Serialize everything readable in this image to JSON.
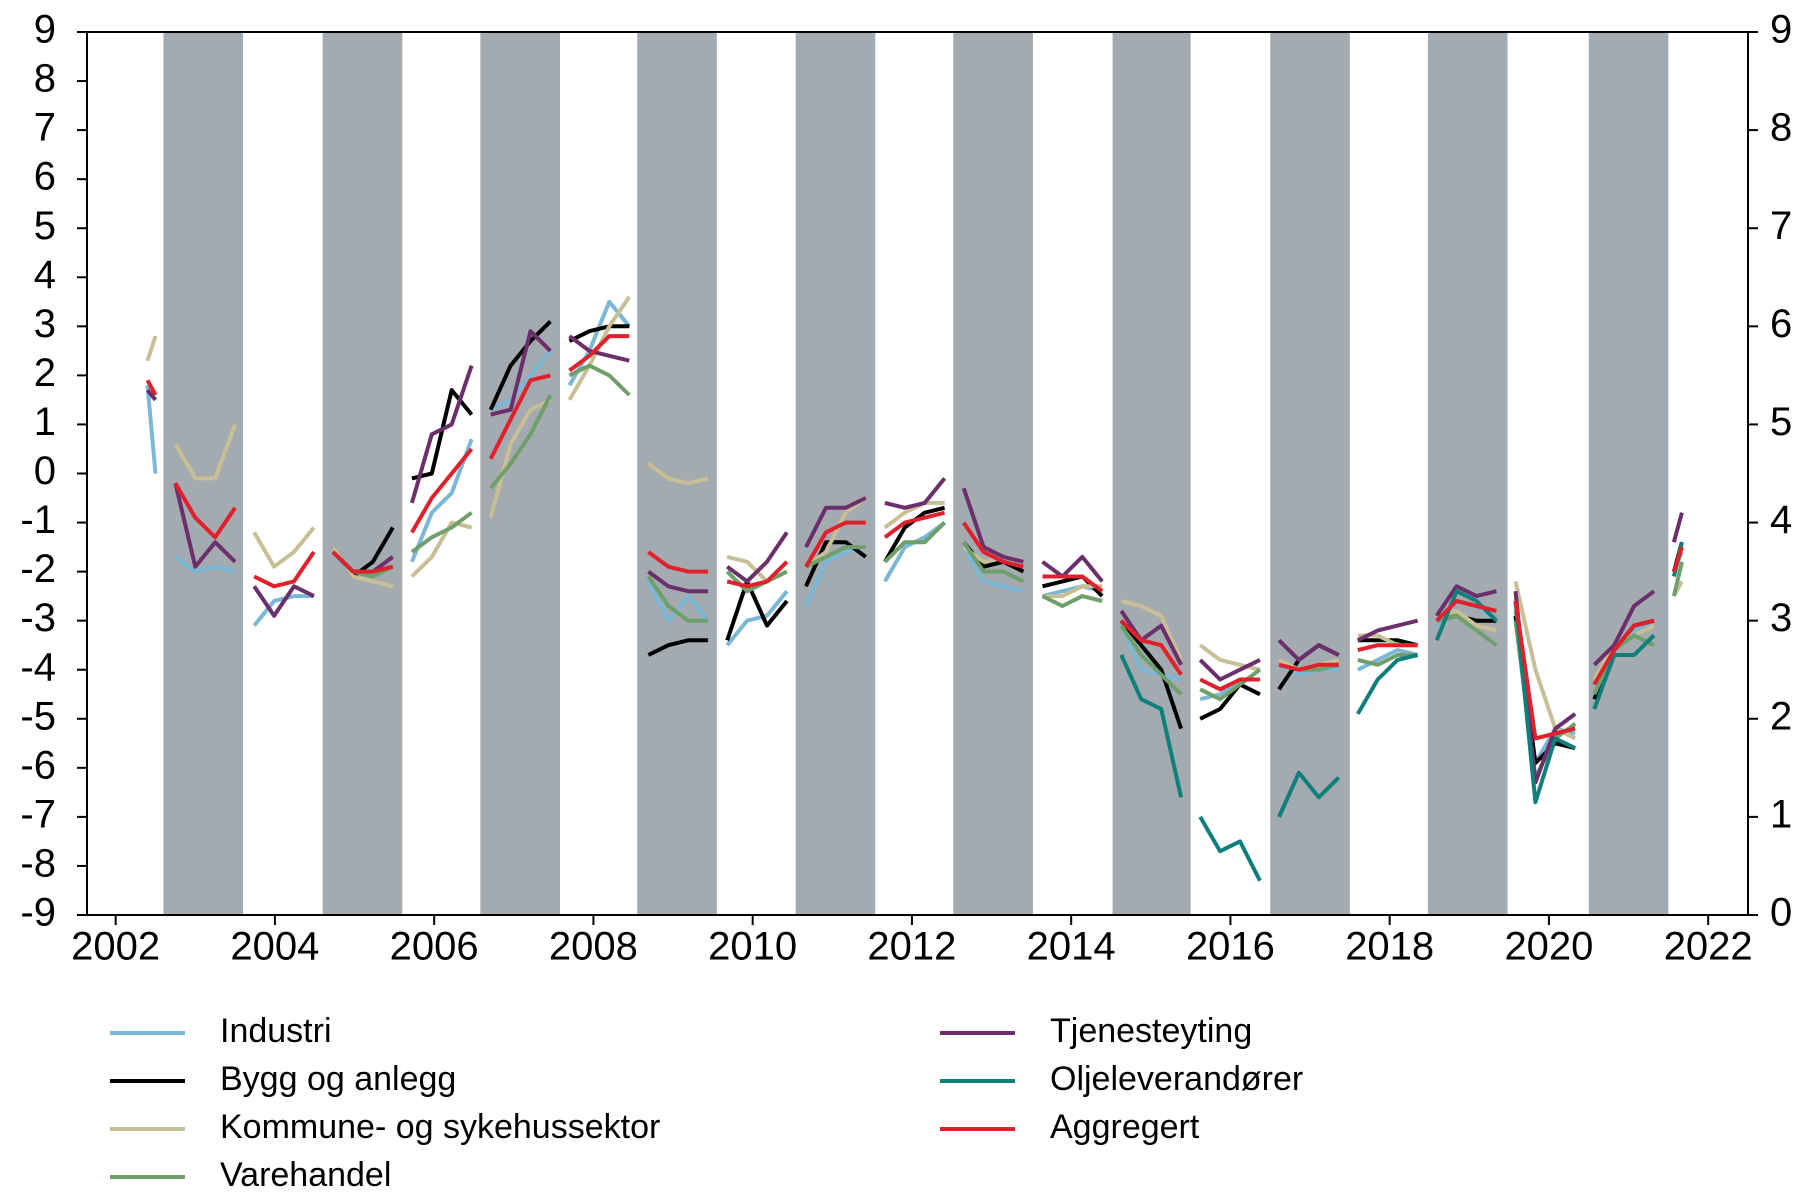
{
  "chart_data": {
    "type": "line",
    "x": [
      2002.4,
      2002.5,
      2002.62,
      2002.75,
      2003,
      2003.25,
      2003.5,
      2003.62,
      2003.74,
      2003.99,
      2004.24,
      2004.49,
      2004.61,
      2004.73,
      2004.98,
      2005.23,
      2005.48,
      2005.6,
      2005.72,
      2005.97,
      2006.22,
      2006.47,
      2006.59,
      2006.71,
      2006.96,
      2007.21,
      2007.46,
      2007.58,
      2007.7,
      2007.95,
      2008.2,
      2008.45,
      2008.57,
      2008.69,
      2008.94,
      2009.19,
      2009.44,
      2009.56,
      2009.68,
      2009.93,
      2010.18,
      2010.43,
      2010.55,
      2010.67,
      2010.92,
      2011.17,
      2011.42,
      2011.54,
      2011.66,
      2011.91,
      2012.16,
      2012.41,
      2012.53,
      2012.65,
      2012.9,
      2013.15,
      2013.4,
      2013.52,
      2013.64,
      2013.89,
      2014.14,
      2014.39,
      2014.51,
      2014.63,
      2014.88,
      2015.13,
      2015.38,
      2015.5,
      2015.62,
      2015.87,
      2016.12,
      2016.37,
      2016.49,
      2016.61,
      2016.86,
      2017.11,
      2017.36,
      2017.48,
      2017.6,
      2017.85,
      2018.1,
      2018.35,
      2018.47,
      2018.59,
      2018.84,
      2019.09,
      2019.34,
      2019.46,
      2019.58,
      2019.83,
      2020.08,
      2020.33,
      2020.45,
      2020.57,
      2020.82,
      2021.07,
      2021.32,
      2021.45,
      2021.57,
      2021.67
    ],
    "series": [
      {
        "name": "Industri",
        "color": "#7ab8d6",
        "values": [
          1.8,
          0,
          null,
          -1.7,
          -2.0,
          -1.9,
          -2.0,
          null,
          -3.1,
          -2.6,
          -2.5,
          -2.5,
          null,
          -1.6,
          -2.1,
          -2.0,
          -1.9,
          null,
          -1.8,
          -0.8,
          -0.4,
          0.7,
          null,
          1.3,
          1.5,
          2.0,
          2.5,
          null,
          1.8,
          2.5,
          3.5,
          3.0,
          null,
          -2.2,
          -3.0,
          -2.5,
          -3.0,
          null,
          -3.5,
          -3.0,
          -2.9,
          -2.4,
          null,
          -2.7,
          -1.8,
          -1.6,
          -1.5,
          null,
          -2.2,
          -1.5,
          -1.3,
          -1.0,
          null,
          -1.5,
          -2.2,
          -2.3,
          -2.4,
          null,
          -2.5,
          -2.4,
          -2.3,
          -2.4,
          null,
          -3.1,
          -4.0,
          -4.1,
          -4.2,
          null,
          -4.6,
          -4.5,
          -4.2,
          -4.2,
          null,
          -3.9,
          -4.1,
          -4.0,
          -4.0,
          null,
          -4.0,
          -3.8,
          -3.6,
          -3.7,
          null,
          -3.1,
          -2.6,
          -2.7,
          -3.0,
          null,
          -2.8,
          -5.9,
          -5.2,
          -5.3,
          null,
          -4.6,
          -3.6,
          -3.2,
          -3.0,
          null,
          -2.0,
          -1.6
        ]
      },
      {
        "name": "Bygg og anlegg",
        "color": "#000000",
        "values": [
          null,
          null,
          null,
          null,
          null,
          null,
          null,
          null,
          null,
          null,
          null,
          null,
          null,
          -1.5,
          -2.1,
          -1.8,
          -1.1,
          null,
          -0.1,
          0,
          1.7,
          1.2,
          null,
          1.3,
          2.2,
          2.7,
          3.1,
          null,
          2.7,
          2.9,
          3.0,
          3.0,
          null,
          -3.7,
          -3.5,
          -3.4,
          -3.4,
          null,
          -3.4,
          -2.2,
          -3.1,
          -2.6,
          null,
          -2.3,
          -1.4,
          -1.4,
          -1.7,
          null,
          -1.8,
          -1.1,
          -0.8,
          -0.7,
          null,
          -1.4,
          -1.9,
          -1.8,
          -2.0,
          null,
          -2.3,
          -2.2,
          -2.1,
          -2.5,
          null,
          -3.0,
          -3.5,
          -4.0,
          -5.2,
          null,
          -5.0,
          -4.8,
          -4.3,
          -4.5,
          null,
          -4.4,
          -3.8,
          -3.5,
          -3.7,
          null,
          -3.4,
          -3.4,
          -3.4,
          -3.5,
          null,
          -3.0,
          -2.9,
          -3.0,
          -3.0,
          null,
          -2.9,
          -5.9,
          -5.5,
          -5.6,
          null,
          -4.6,
          -3.6,
          -3.1,
          -3.0,
          null,
          -2.0,
          -1.4
        ]
      },
      {
        "name": "Kommune- og sykehussektor",
        "color": "#c8bf96",
        "values": [
          2.3,
          2.8,
          null,
          0.6,
          -0.1,
          -0.1,
          1.0,
          null,
          -1.2,
          -1.9,
          -1.6,
          -1.1,
          null,
          -1.5,
          -2.1,
          -2.2,
          -2.3,
          null,
          -2.1,
          -1.7,
          -1.0,
          -1.1,
          null,
          -0.9,
          0.6,
          1.3,
          1.5,
          null,
          1.5,
          2.2,
          3.0,
          3.6,
          null,
          0.2,
          -0.1,
          -0.2,
          -0.1,
          null,
          -1.7,
          -1.8,
          -2.2,
          -2.0,
          null,
          -1.9,
          -1.6,
          -0.8,
          -0.5,
          null,
          -1.1,
          -0.8,
          -0.6,
          -0.6,
          null,
          -1.5,
          -1.8,
          -1.7,
          -1.8,
          null,
          -2.5,
          -2.5,
          -2.3,
          -2.3,
          null,
          -2.6,
          -2.7,
          -2.9,
          -3.8,
          null,
          -3.5,
          -3.8,
          -3.9,
          -4.0,
          null,
          -3.8,
          -4.0,
          -3.9,
          -3.8,
          null,
          -3.3,
          -3.3,
          -3.5,
          -3.5,
          null,
          -2.9,
          -2.8,
          -3.1,
          -3.2,
          null,
          -2.2,
          -4.0,
          -5.2,
          -5.4,
          null,
          -4.2,
          -3.5,
          -3.3,
          -3.1,
          null,
          -2.5,
          -2.2
        ]
      },
      {
        "name": "Varehandel",
        "color": "#6fa06b",
        "values": [
          null,
          null,
          null,
          null,
          null,
          null,
          null,
          null,
          null,
          null,
          null,
          null,
          null,
          -1.6,
          -2.0,
          -2.1,
          -1.9,
          null,
          -1.6,
          -1.3,
          -1.1,
          -0.8,
          null,
          -0.3,
          0.2,
          0.8,
          1.6,
          null,
          2.0,
          2.2,
          2.0,
          1.6,
          null,
          -2.1,
          -2.7,
          -3.0,
          -3.0,
          null,
          -2.0,
          -2.4,
          -2.2,
          -2.0,
          null,
          -1.9,
          -1.7,
          -1.5,
          -1.5,
          null,
          -1.8,
          -1.4,
          -1.4,
          -1.0,
          null,
          -1.4,
          -2.0,
          -2.0,
          -2.2,
          null,
          -2.5,
          -2.7,
          -2.5,
          -2.6,
          null,
          -3.1,
          -3.7,
          -4.1,
          -4.5,
          null,
          -4.4,
          -4.6,
          -4.3,
          -4.0,
          null,
          -3.9,
          -4.0,
          -4.0,
          -3.9,
          null,
          -3.8,
          -3.9,
          -3.7,
          -3.7,
          null,
          -3.0,
          -2.9,
          -3.2,
          -3.5,
          null,
          -3.0,
          -6.2,
          -5.4,
          -5.1,
          null,
          -4.5,
          -3.6,
          -3.3,
          -3.5,
          null,
          -2.5,
          -1.8
        ]
      },
      {
        "name": "Tjenesteyting",
        "color": "#6b2f6b",
        "values": [
          1.7,
          1.5,
          null,
          -0.2,
          -1.9,
          -1.4,
          -1.8,
          null,
          -2.3,
          -2.9,
          -2.3,
          -2.5,
          null,
          -1.6,
          -2.0,
          -2.0,
          -1.7,
          null,
          -0.6,
          0.8,
          1.0,
          2.2,
          null,
          1.2,
          1.3,
          2.9,
          2.5,
          null,
          2.8,
          2.5,
          2.4,
          2.3,
          null,
          -2.0,
          -2.3,
          -2.4,
          -2.4,
          null,
          -1.9,
          -2.2,
          -1.8,
          -1.2,
          null,
          -1.5,
          -0.7,
          -0.7,
          -0.5,
          null,
          -0.6,
          -0.7,
          -0.6,
          -0.1,
          null,
          -0.3,
          -1.5,
          -1.7,
          -1.8,
          null,
          -1.8,
          -2.1,
          -1.7,
          -2.2,
          null,
          -2.8,
          -3.4,
          -3.1,
          -3.9,
          null,
          -3.8,
          -4.2,
          -4.0,
          -3.8,
          null,
          -3.4,
          -3.8,
          -3.5,
          -3.7,
          null,
          -3.4,
          -3.2,
          -3.1,
          -3.0,
          null,
          -2.9,
          -2.3,
          -2.5,
          -2.4,
          null,
          -2.4,
          -6.3,
          -5.2,
          -4.9,
          null,
          -3.9,
          -3.5,
          -2.7,
          -2.4,
          null,
          -1.4,
          -0.8
        ]
      },
      {
        "name": "Oljeleverandører",
        "color": "#0e7f7a",
        "values": [
          null,
          null,
          null,
          null,
          null,
          null,
          null,
          null,
          null,
          null,
          null,
          null,
          null,
          null,
          null,
          null,
          null,
          null,
          null,
          null,
          null,
          null,
          null,
          null,
          null,
          null,
          null,
          null,
          null,
          null,
          null,
          null,
          null,
          null,
          null,
          null,
          null,
          null,
          null,
          null,
          null,
          null,
          null,
          null,
          null,
          null,
          null,
          null,
          null,
          null,
          null,
          null,
          null,
          null,
          null,
          null,
          null,
          null,
          null,
          null,
          null,
          null,
          null,
          -3.7,
          -4.6,
          -4.8,
          -6.6,
          null,
          -7.0,
          -7.7,
          -7.5,
          -8.3,
          null,
          -7.0,
          -6.1,
          -6.6,
          -6.2,
          null,
          -4.9,
          -4.2,
          -3.8,
          -3.7,
          null,
          -3.4,
          -2.4,
          -2.6,
          -3.0,
          null,
          -2.6,
          -6.7,
          -5.4,
          -5.6,
          null,
          -4.8,
          -3.7,
          -3.7,
          -3.3,
          null,
          -2.1,
          -1.4
        ]
      },
      {
        "name": "Aggregert",
        "color": "#e0202a",
        "values": [
          1.9,
          1.6,
          null,
          -0.2,
          -0.9,
          -1.3,
          -0.7,
          null,
          -2.1,
          -2.3,
          -2.2,
          -1.6,
          null,
          -1.6,
          -2.0,
          -2.0,
          -1.9,
          null,
          -1.2,
          -0.5,
          0,
          0.5,
          null,
          0.3,
          1.1,
          1.9,
          2.0,
          null,
          2.1,
          2.4,
          2.8,
          2.8,
          null,
          -1.6,
          -1.9,
          -2.0,
          -2.0,
          null,
          -2.2,
          -2.3,
          -2.2,
          -1.8,
          null,
          -1.9,
          -1.2,
          -1.0,
          -1.0,
          null,
          -1.3,
          -1.0,
          -0.9,
          -0.8,
          null,
          -1.0,
          -1.6,
          -1.8,
          -1.9,
          null,
          -2.1,
          -2.1,
          -2.1,
          -2.4,
          null,
          -3.0,
          -3.4,
          -3.5,
          -4.1,
          null,
          -4.2,
          -4.4,
          -4.2,
          -4.2,
          null,
          -3.9,
          -4.0,
          -3.9,
          -3.9,
          null,
          -3.6,
          -3.5,
          -3.5,
          -3.5,
          null,
          -3.0,
          -2.6,
          -2.7,
          -2.8,
          null,
          -2.6,
          -5.4,
          -5.3,
          -5.2,
          null,
          -4.3,
          -3.6,
          -3.1,
          -3.0,
          null,
          -2.0,
          -1.5
        ]
      }
    ],
    "shaded_periods": [
      [
        2002.6,
        2003.6
      ],
      [
        2004.6,
        2005.6
      ],
      [
        2006.58,
        2007.58
      ],
      [
        2008.55,
        2009.55
      ],
      [
        2010.54,
        2011.54
      ],
      [
        2012.52,
        2013.52
      ],
      [
        2014.52,
        2015.5
      ],
      [
        2016.5,
        2017.5
      ],
      [
        2018.48,
        2019.48
      ],
      [
        2020.5,
        2021.5
      ]
    ],
    "shaded_color": "#a3aab0",
    "xlim": [
      2001.64,
      2022.5
    ],
    "xticks": [
      2002,
      2004,
      2006,
      2008,
      2010,
      2012,
      2014,
      2016,
      2018,
      2020,
      2022
    ],
    "ylim": [
      -9,
      9
    ],
    "yticks": [
      -9,
      -8,
      -7,
      -6,
      -5,
      -4,
      -3,
      -2,
      -1,
      0,
      1,
      2,
      3,
      4,
      5,
      6,
      7,
      8,
      9
    ],
    "y2lim": [
      0,
      9
    ],
    "y2ticks": [
      0,
      1,
      2,
      3,
      4,
      5,
      6,
      7,
      8,
      9
    ],
    "grid": false,
    "legend": "bottom"
  }
}
